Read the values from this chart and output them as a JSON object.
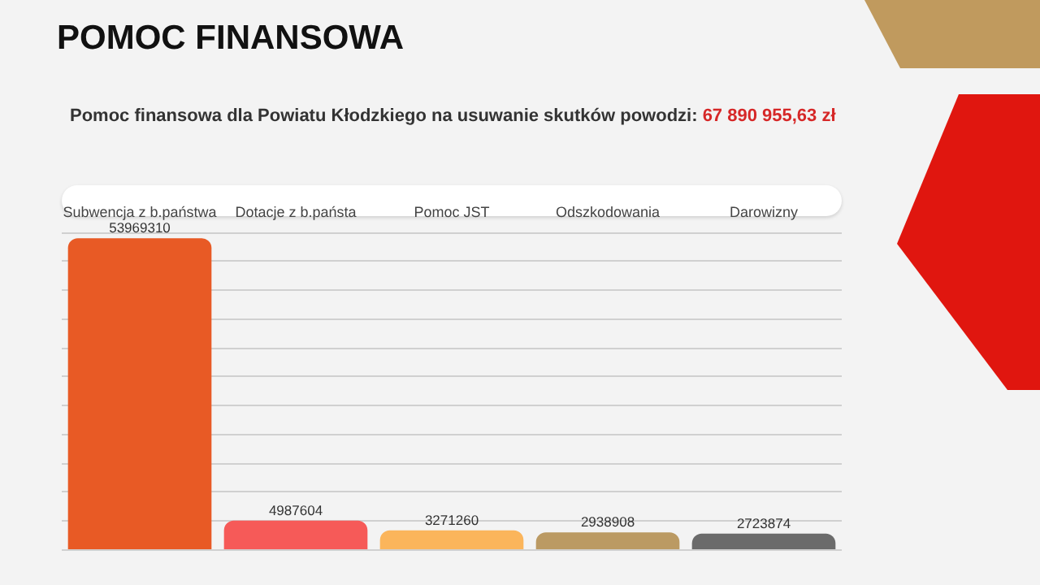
{
  "chart_data": {
    "type": "bar",
    "title": "POMOC FINANSOWA",
    "subtitle": "Pomoc finansowa dla Powiatu Kłodzkiego na usuwanie skutków powodzi: 67 890 955,63 zł",
    "categories": [
      "Subwencja z b.państwa",
      "Dotacje z b.państa",
      "Pomoc JST",
      "Odszkodowania",
      "Darowizny"
    ],
    "values": [
      53969310,
      4987604,
      3271260,
      2938908,
      2723874
    ],
    "colors": [
      "#e85a25",
      "#f65a58",
      "#fbb55b",
      "#bb9a63",
      "#6b6b6b"
    ],
    "ylim": [
      0,
      55000000
    ],
    "yticks": [
      {
        "value": 0,
        "label": null
      },
      {
        "value": 5000000,
        "label": null
      },
      {
        "value": 10000000,
        "label": null
      },
      {
        "value": 15000000,
        "label": null
      },
      {
        "value": 20000000,
        "label": null
      },
      {
        "value": 25000000,
        "label": null
      },
      {
        "value": 30000000,
        "label": null
      },
      {
        "value": 35000000,
        "label": null
      },
      {
        "value": 40000000,
        "label": null
      },
      {
        "value": 45000000,
        "label": null
      },
      {
        "value": 50000000,
        "label": null
      },
      {
        "value": 55000000,
        "label": null
      }
    ],
    "grid": "y",
    "tick_labels": "x",
    "data_labels": true
  }
}
